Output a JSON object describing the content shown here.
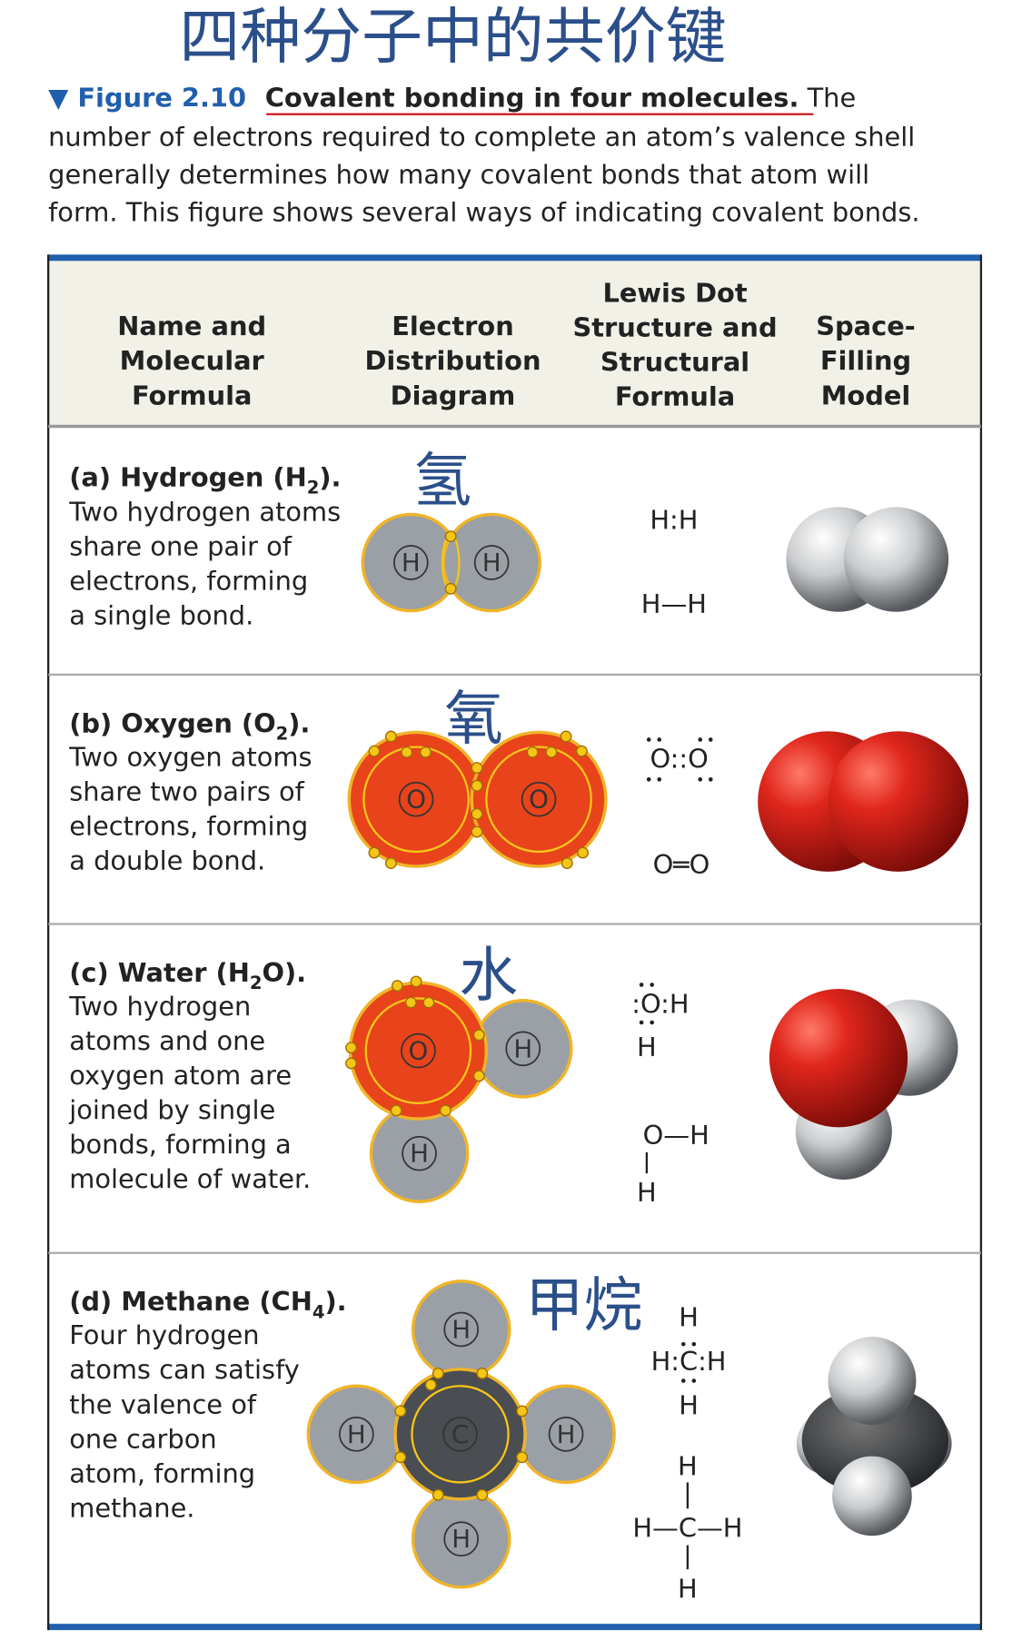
{
  "title_cjk": "四种分子中的共价键",
  "caption": {
    "figure_label": "▼ Figure 2.10",
    "figure_title": "Covalent bonding in four molecules.",
    "lines": [
      "The",
      "number of electrons required to complete an atom’s valence shell",
      "generally determines how many covalent bonds that atom will",
      "form. This figure shows several ways of indicating covalent bonds."
    ]
  },
  "colors": {
    "accent_blue": "#1f5fae",
    "header_bg": "#f2f1e8",
    "oxygen": "#e8431b",
    "hydrogen": "#9aa0a6",
    "carbon": "#4a4d52",
    "electron": "#f5c518",
    "underline": "#d0161b"
  },
  "table": {
    "headers": [
      [
        "Name and",
        "Molecular",
        "Formula"
      ],
      [
        "Electron",
        "Distribution",
        "Diagram"
      ],
      [
        "Lewis Dot",
        "Structure and",
        "Structural",
        "Formula"
      ],
      [
        "Space-",
        "Filling",
        "Model"
      ]
    ],
    "rows": [
      {
        "label": "(a) Hydrogen (H",
        "sub": "2",
        "end": ").",
        "desc": [
          "Two hydrogen atoms",
          "share one pair of",
          "electrons, forming",
          "a single bond."
        ],
        "cjk": "氢",
        "lewis": "H:H",
        "structural": "H—H",
        "atoms": [
          "H",
          "H"
        ]
      },
      {
        "label": "(b) Oxygen (O",
        "sub": "2",
        "end": ").",
        "desc": [
          "Two oxygen atoms",
          "share two pairs of",
          "electrons, forming",
          "a double bond."
        ],
        "cjk": "氧",
        "lewis": "O::O",
        "structural": "O═O",
        "atoms": [
          "O",
          "O"
        ]
      },
      {
        "label": "(c) Water (H",
        "sub": "2",
        "end": "O).",
        "desc": [
          "Two hydrogen",
          "atoms and one",
          "oxygen atom are",
          "joined by single",
          "bonds, forming a",
          "molecule of water."
        ],
        "cjk": "水",
        "lewis": ":O:H",
        "lewis_below": "H",
        "structural": "O—H",
        "structural_below": "H",
        "atoms": [
          "O",
          "H",
          "H"
        ]
      },
      {
        "label": "(d) Methane (CH",
        "sub": "4",
        "end": ").",
        "desc": [
          "Four hydrogen",
          "atoms can satisfy",
          "the valence of",
          "one carbon",
          "atom, forming",
          "methane."
        ],
        "cjk": "甲烷",
        "lewis_top": "H",
        "lewis": "H:C:H",
        "lewis_bottom": "H",
        "structural_top": "H",
        "structural": "H—C—H",
        "structural_bottom": "H",
        "atoms": [
          "C",
          "H",
          "H",
          "H",
          "H"
        ]
      }
    ]
  }
}
